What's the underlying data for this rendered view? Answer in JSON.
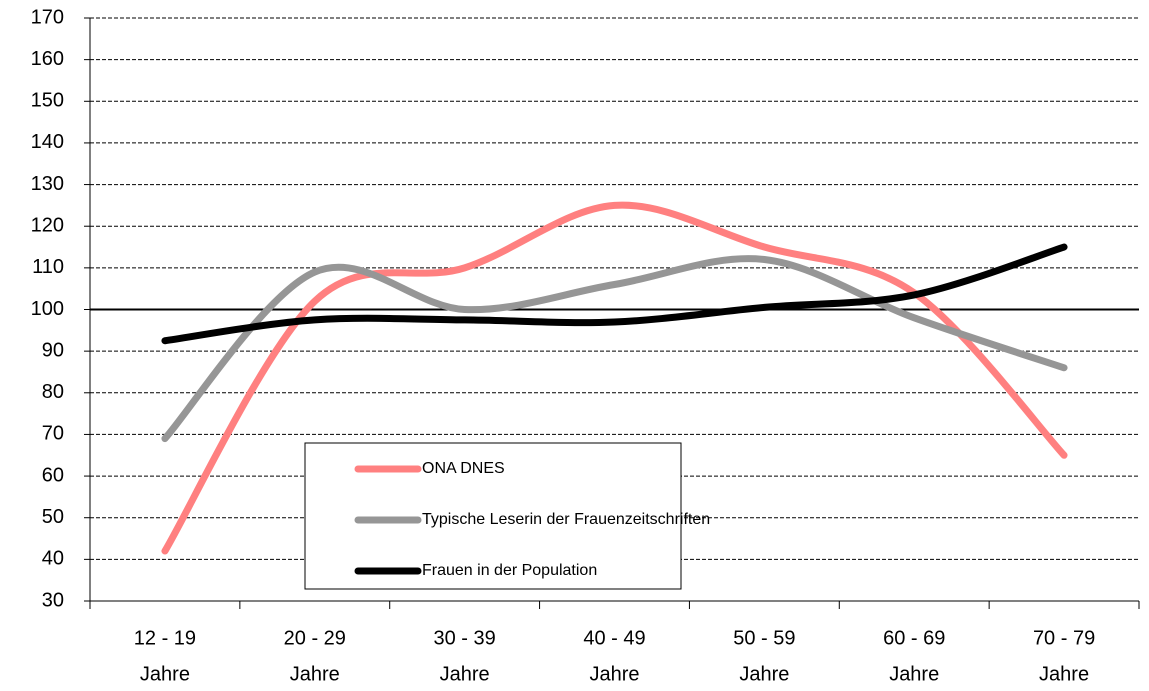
{
  "chart_data": {
    "type": "line",
    "categories": [
      [
        "12 - 19",
        "Jahre"
      ],
      [
        "20 - 29",
        "Jahre"
      ],
      [
        "30 - 39",
        "Jahre"
      ],
      [
        "40 - 49",
        "Jahre"
      ],
      [
        "50 - 59",
        "Jahre"
      ],
      [
        "60 - 69",
        "Jahre"
      ],
      [
        "70 - 79",
        "Jahre"
      ]
    ],
    "series": [
      {
        "name": "ONA DNES",
        "color": "#ff8080",
        "values": [
          42,
          102,
          110,
          125,
          115,
          104,
          65
        ]
      },
      {
        "name": "Typische Leserin der Frauenzeitschriften",
        "color": "#969696",
        "values": [
          69,
          109,
          100,
          106,
          112,
          98,
          86
        ]
      },
      {
        "name": "Frauen in der Population",
        "color": "#000000",
        "values": [
          92.5,
          97.5,
          97.5,
          97,
          100.5,
          103.5,
          115
        ]
      }
    ],
    "ylim": [
      30,
      170
    ],
    "yticks": [
      30,
      40,
      50,
      60,
      70,
      80,
      90,
      100,
      110,
      120,
      130,
      140,
      150,
      160,
      170
    ],
    "grid": true,
    "reference_line": 100,
    "smooth": true
  }
}
